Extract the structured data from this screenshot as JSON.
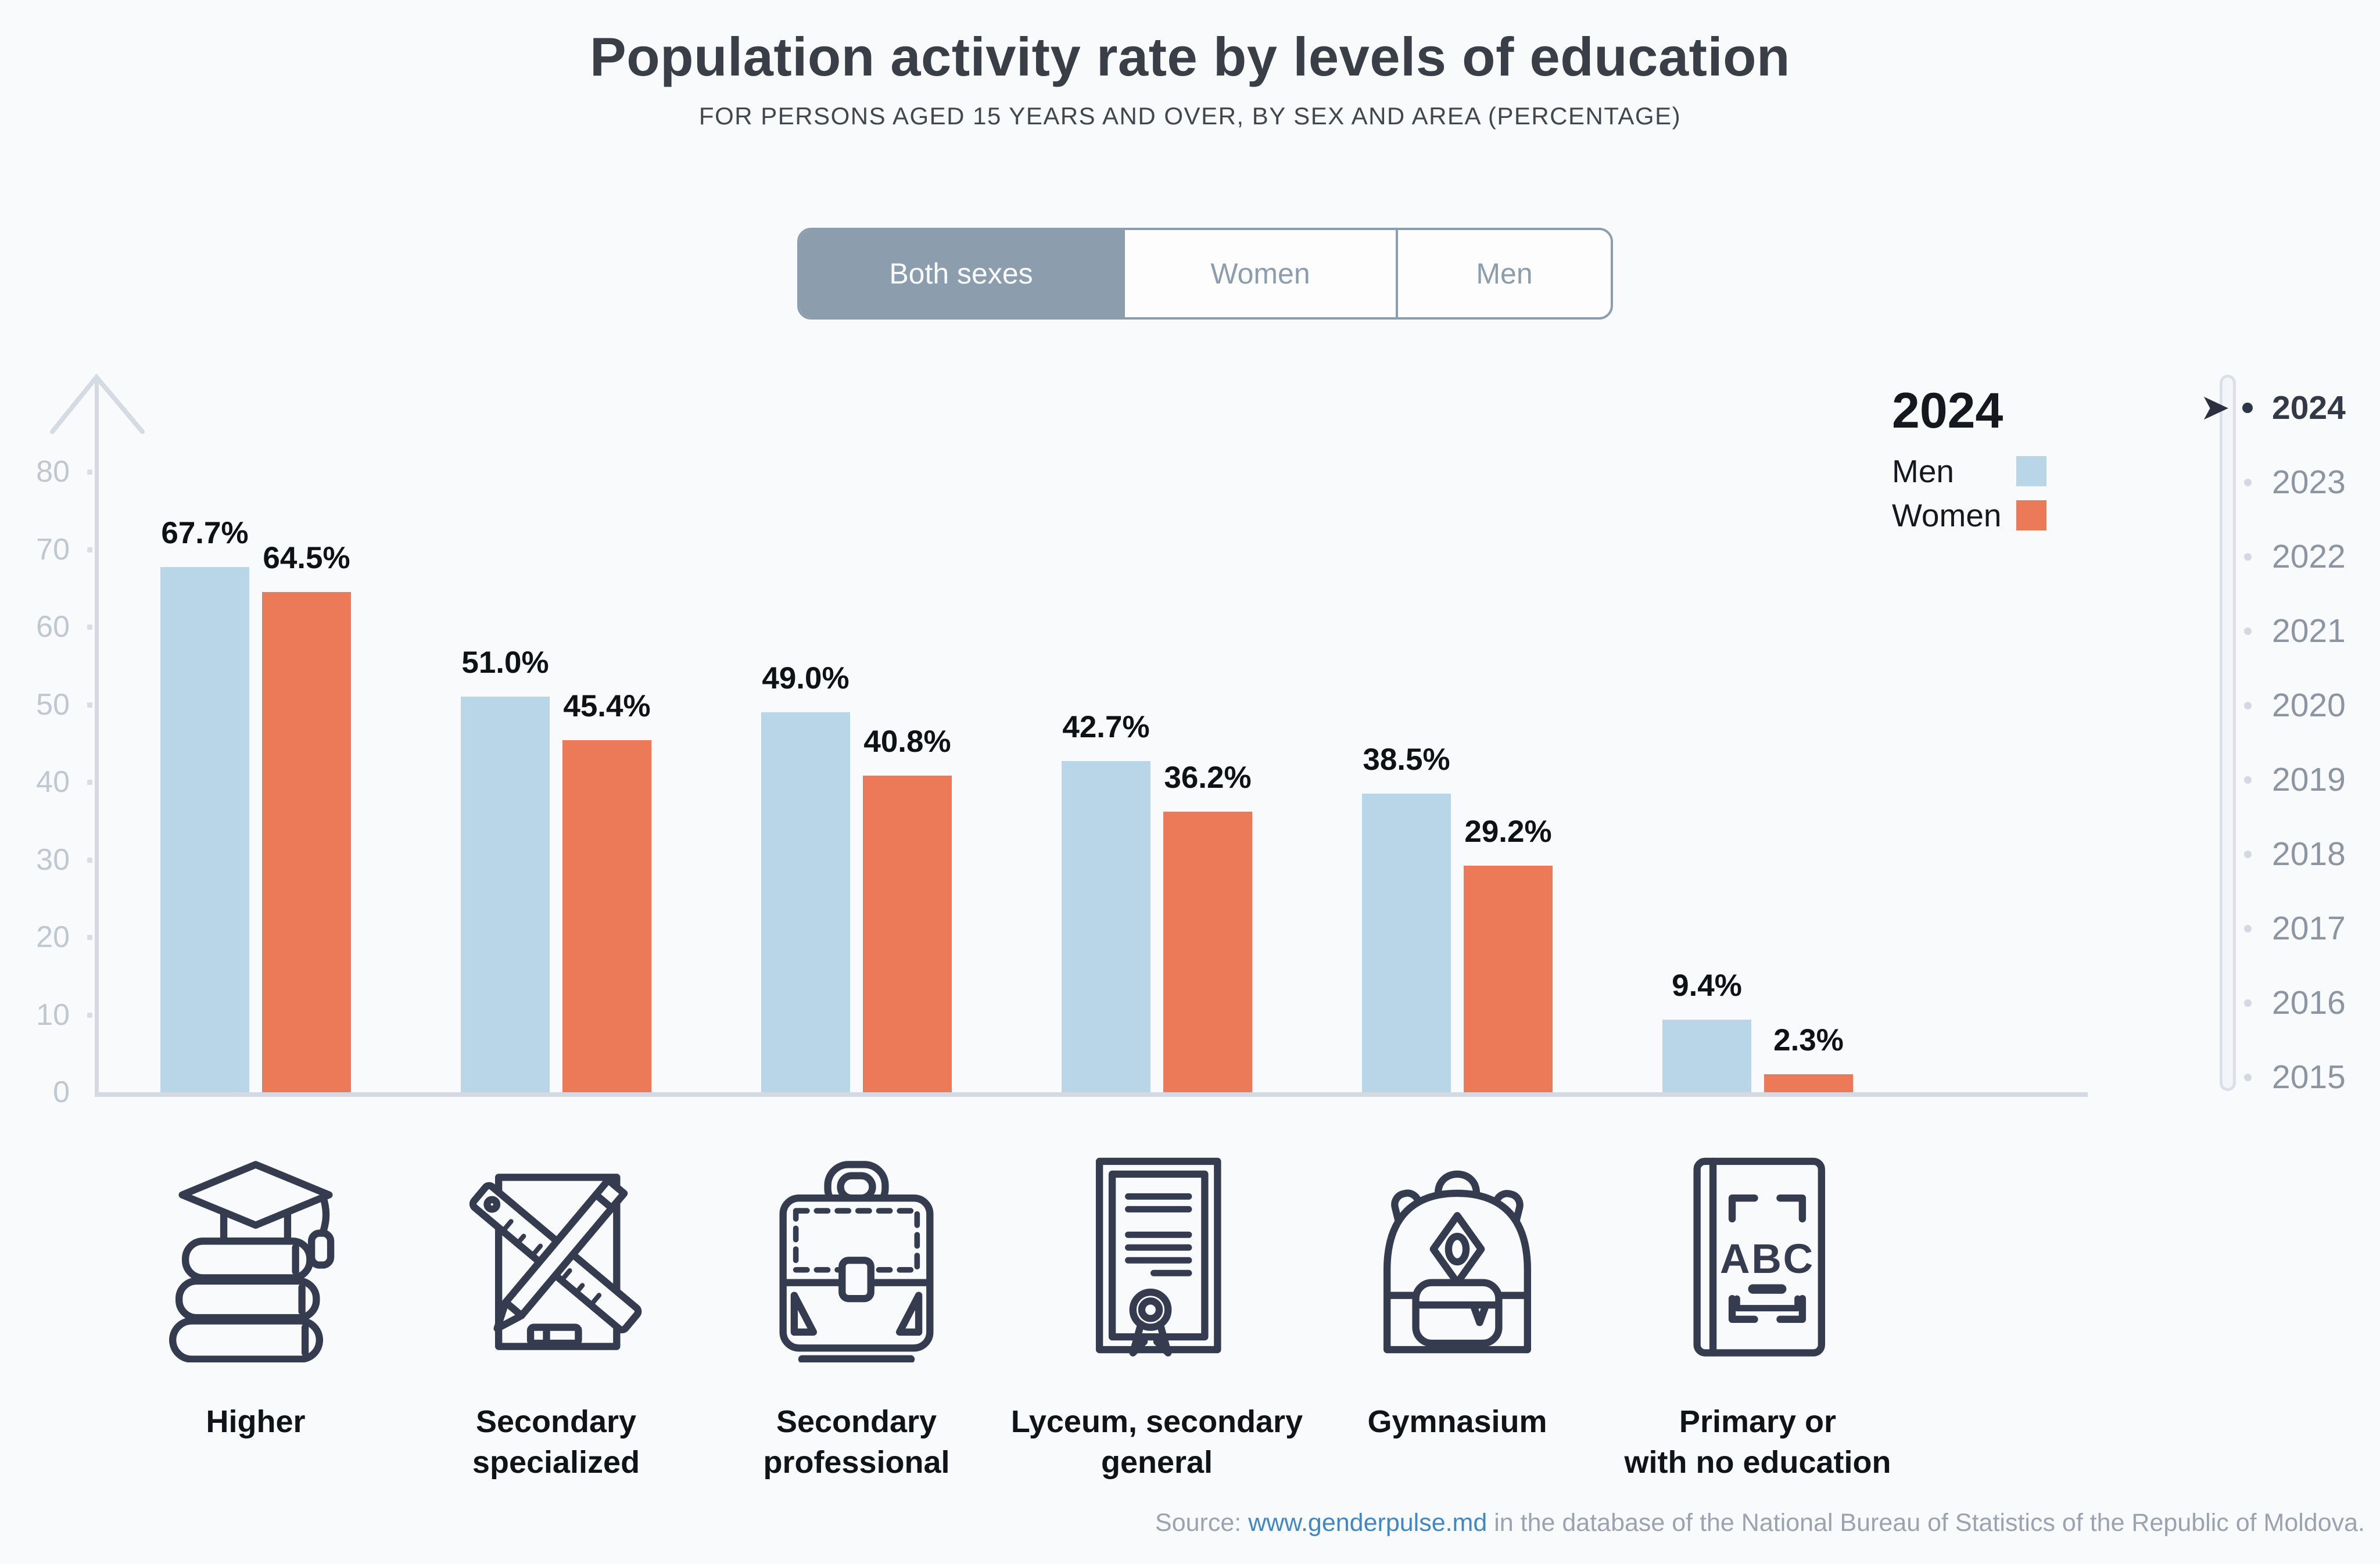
{
  "header": {
    "title": "Population activity rate by levels of education",
    "subtitle": "FOR PERSONS AGED 15 YEARS AND OVER, BY SEX AND AREA (PERCENTAGE)"
  },
  "tabs": {
    "items": [
      {
        "label": "Both sexes",
        "active": true
      },
      {
        "label": "Women",
        "active": false
      },
      {
        "label": "Men",
        "active": false
      }
    ],
    "accent_color": "#8C9EAD"
  },
  "legend": {
    "year": "2024",
    "entries": [
      {
        "label": "Men",
        "color": "#B9D6E9"
      },
      {
        "label": "Women",
        "color": "#EC7A58"
      }
    ]
  },
  "chart_data": {
    "type": "bar",
    "title": "Population activity rate by levels of education",
    "subtitle": "FOR PERSONS AGED 15 YEARS AND OVER, BY SEX AND AREA (PERCENTAGE)",
    "year": "2024",
    "unit": "percent",
    "ylim": [
      0,
      80
    ],
    "grid": false,
    "legend_position": "top-right",
    "categories": [
      {
        "label_lines": [
          "Higher"
        ],
        "icon": "books-graduation-cap-icon"
      },
      {
        "label_lines": [
          "Secondary",
          "specialized"
        ],
        "icon": "ruler-pencil-icon"
      },
      {
        "label_lines": [
          "Secondary",
          "professional"
        ],
        "icon": "briefcase-icon"
      },
      {
        "label_lines": [
          "Lyceum, secondary",
          "general"
        ],
        "icon": "certificate-icon"
      },
      {
        "label_lines": [
          "Gymnasium"
        ],
        "icon": "backpack-icon"
      },
      {
        "label_lines": [
          "Primary or",
          "with no education"
        ],
        "icon": "abc-book-icon"
      }
    ],
    "series": [
      {
        "name": "Men",
        "color": "#B9D6E9",
        "values": [
          67.7,
          51.0,
          49.0,
          42.7,
          38.5,
          9.4
        ],
        "labels": [
          "67.7%",
          "51.0%",
          "49.0%",
          "42.7%",
          "38.5%",
          "9.4%"
        ]
      },
      {
        "name": "Women",
        "color": "#EC7A58",
        "values": [
          64.5,
          45.4,
          40.8,
          36.2,
          29.2,
          2.3
        ],
        "labels": [
          "64.5%",
          "45.4%",
          "40.8%",
          "36.2%",
          "29.2%",
          "2.3%"
        ]
      }
    ],
    "y_axis": {
      "ticks": [
        0,
        10,
        20,
        30,
        40,
        50,
        60,
        70,
        80
      ]
    }
  },
  "timeline": {
    "years": [
      "2024",
      "2023",
      "2022",
      "2021",
      "2020",
      "2019",
      "2018",
      "2017",
      "2016",
      "2015"
    ],
    "active_year": "2024",
    "cursor_glyph": "➤"
  },
  "icons": {
    "abc_text": "ABC"
  },
  "footer": {
    "prefix": "Source: ",
    "link": "www.genderpulse.md",
    "suffix": " in the database of the National Bureau of Statistics of the Republic of Moldova.",
    "link_color": "#3F88C5"
  }
}
